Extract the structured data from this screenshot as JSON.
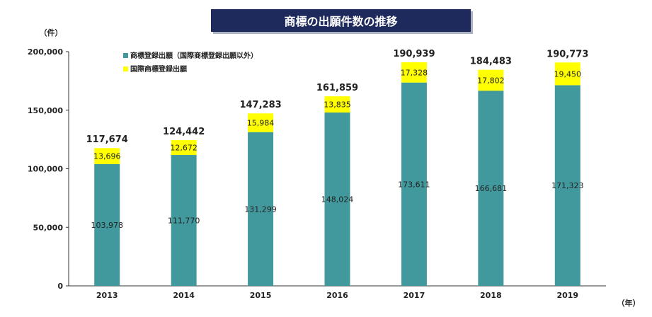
{
  "chart_data": {
    "type": "bar",
    "stacked": true,
    "title": "商標の出願件数の推移",
    "ylabel": "（件）",
    "xlabel": "（年）",
    "ylim": [
      0,
      200000
    ],
    "yticks": [
      0,
      50000,
      100000,
      150000,
      200000
    ],
    "ytick_labels": [
      "0",
      "50,000",
      "100,000",
      "150,000",
      "200,000"
    ],
    "categories": [
      "2013",
      "2014",
      "2015",
      "2016",
      "2017",
      "2018",
      "2019"
    ],
    "series": [
      {
        "name": "商標登録出願（国際商標登録出願以外）",
        "color": "#42999d",
        "values": [
          103978,
          111770,
          131299,
          148024,
          173611,
          166681,
          171323
        ],
        "labels": [
          "103,978",
          "111,770",
          "131,299",
          "148,024",
          "173,611",
          "166,681",
          "171,323"
        ]
      },
      {
        "name": "国際商標登録出願",
        "color": "#ffff00",
        "values": [
          13696,
          12672,
          15984,
          13835,
          17328,
          17802,
          19450
        ],
        "labels": [
          "13,696",
          "12,672",
          "15,984",
          "13,835",
          "17,328",
          "17,802",
          "19,450"
        ]
      }
    ],
    "totals": [
      117674,
      124442,
      147283,
      161859,
      190939,
      184483,
      190773
    ],
    "total_labels": [
      "117,674",
      "124,442",
      "147,283",
      "161,859",
      "190,939",
      "184,483",
      "190,773"
    ],
    "legend": "top-left"
  }
}
